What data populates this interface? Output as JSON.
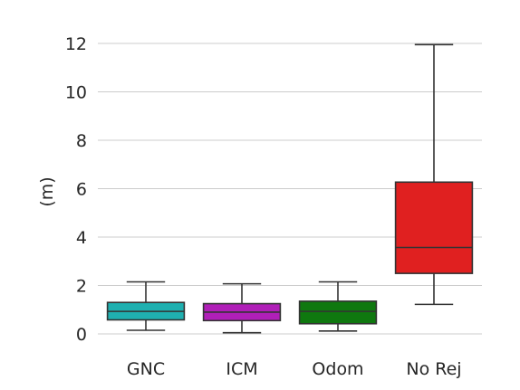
{
  "chart_data": {
    "type": "box",
    "title": "",
    "xlabel": "",
    "ylabel": "(m)",
    "ylim": [
      0,
      12.4
    ],
    "yticks": [
      0,
      2,
      4,
      6,
      8,
      10,
      12
    ],
    "grid": "horizontal",
    "legend": "none",
    "categories": [
      "GNC",
      "ICM",
      "Odom",
      "No Rej"
    ],
    "boxes": [
      {
        "name": "GNC",
        "color": "#1fb0b0",
        "whisker_low": 0.15,
        "q1": 0.58,
        "median": 0.93,
        "q3": 1.3,
        "whisker_high": 2.15
      },
      {
        "name": "ICM",
        "color": "#b01fb8",
        "whisker_low": 0.05,
        "q1": 0.55,
        "median": 0.9,
        "q3": 1.25,
        "whisker_high": 2.07
      },
      {
        "name": "Odom",
        "color": "#0f780f",
        "whisker_low": 0.12,
        "q1": 0.42,
        "median": 0.93,
        "q3": 1.35,
        "whisker_high": 2.15
      },
      {
        "name": "No Rej",
        "color": "#e02020",
        "whisker_low": 1.22,
        "q1": 2.5,
        "median": 3.57,
        "q3": 6.27,
        "whisker_high": 11.95
      }
    ]
  }
}
